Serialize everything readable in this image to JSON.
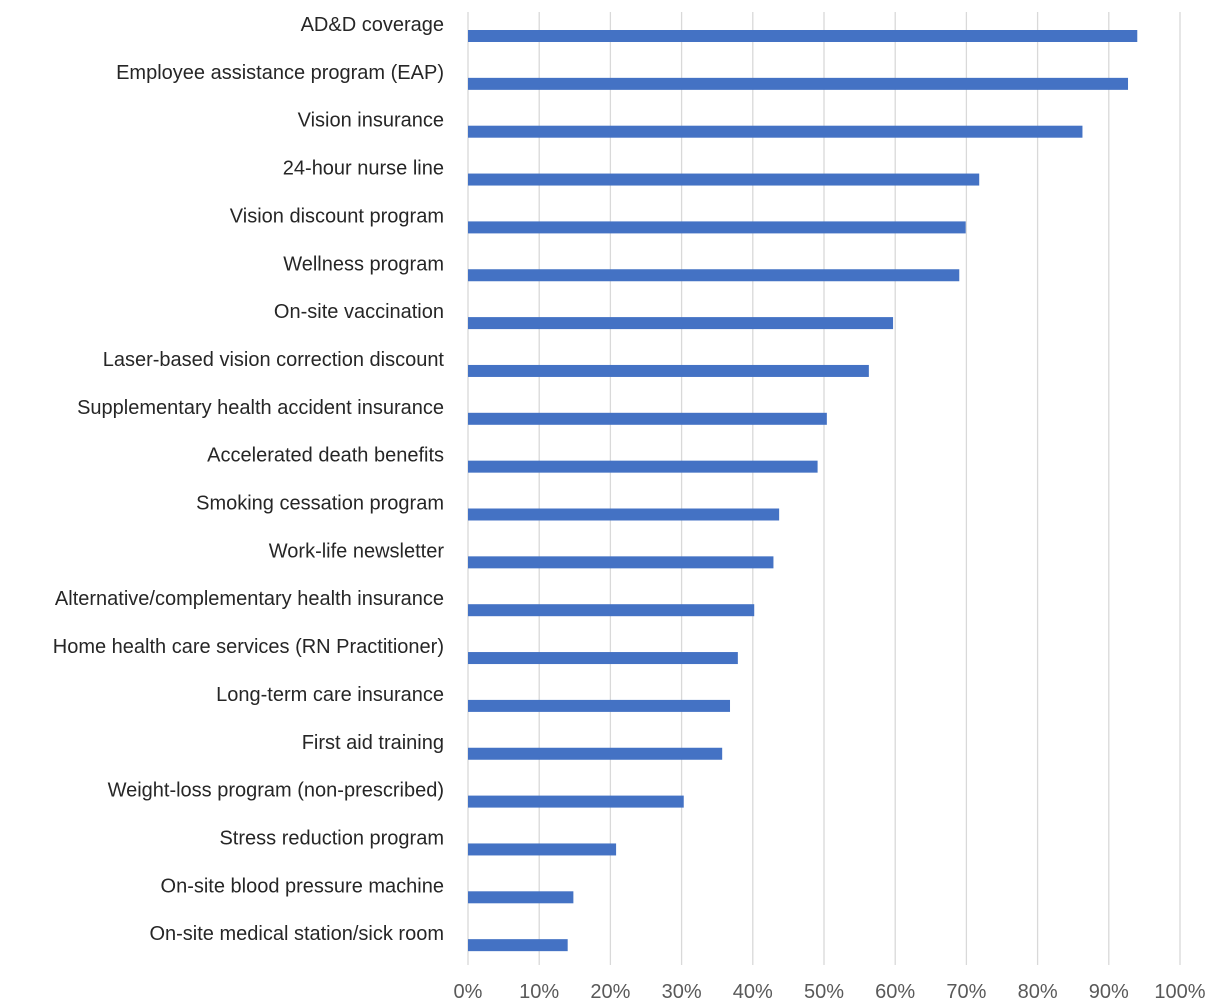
{
  "chart_data": {
    "type": "bar",
    "orientation": "horizontal",
    "title": "",
    "xlabel": "",
    "ylabel": "",
    "categories": [
      "AD&D coverage",
      "Employee assistance program (EAP)",
      "Vision insurance",
      "24-hour nurse line",
      "Vision discount program",
      "Wellness program",
      "On-site vaccination",
      "Laser-based vision correction discount",
      "Supplementary health accident insurance",
      "Accelerated death benefits",
      "Smoking cessation program",
      "Work-life newsletter",
      "Alternative/complementary health insurance",
      "Home health care services (RN Practitioner)",
      "Long-term care insurance",
      "First aid training",
      "Weight-loss program (non-prescribed)",
      "Stress reduction program",
      "On-site blood pressure machine",
      "On-site medical station/sick room"
    ],
    "values": [
      94,
      92.7,
      86.3,
      71.8,
      69.9,
      69,
      59.7,
      56.3,
      50.4,
      49.1,
      43.7,
      42.9,
      40.2,
      37.9,
      36.8,
      35.7,
      30.3,
      20.8,
      14.8,
      14.0
    ],
    "xlim": [
      0,
      100
    ],
    "x_ticks": [
      0,
      10,
      20,
      30,
      40,
      50,
      60,
      70,
      80,
      90,
      100
    ],
    "x_tick_labels": [
      "0%",
      "10%",
      "20%",
      "30%",
      "40%",
      "50%",
      "60%",
      "70%",
      "80%",
      "90%",
      "100%"
    ],
    "grid": true,
    "legend": "none",
    "bar_color": "#4472c4",
    "grid_color": "#d9d9d9"
  }
}
